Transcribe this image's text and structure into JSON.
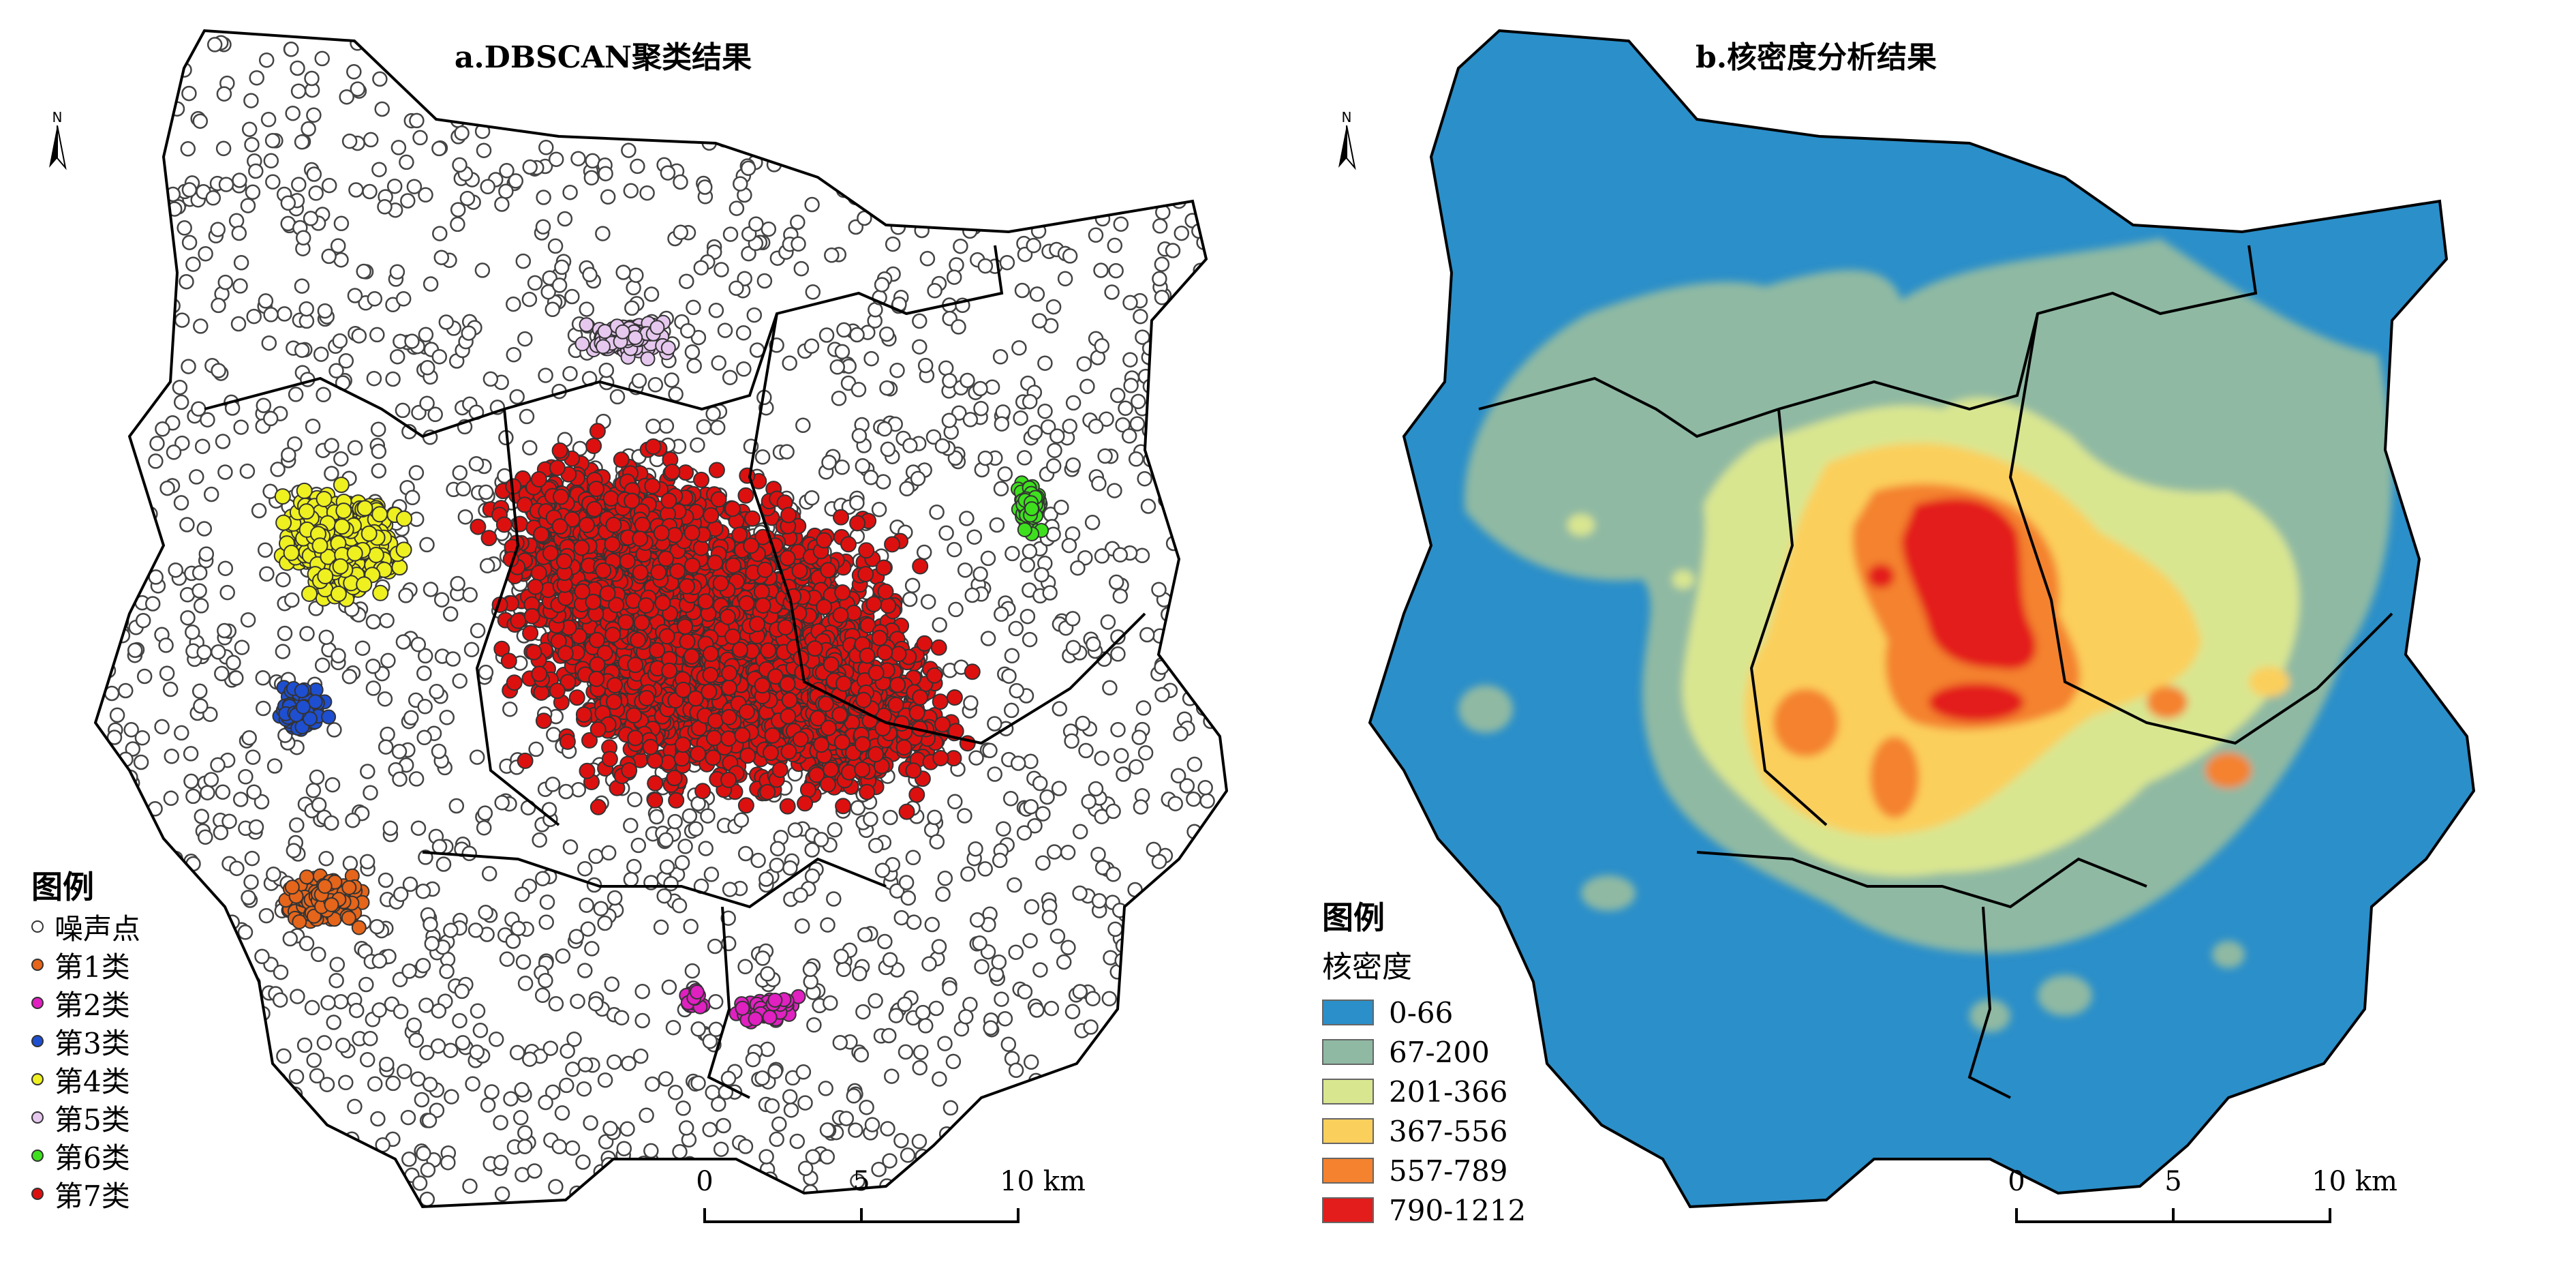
{
  "panel_a": {
    "title": "a.DBSCAN聚类结果",
    "north_letter": "N",
    "legend": {
      "title": "图例",
      "items": [
        {
          "label": "噪声点",
          "color": "#ffffff"
        },
        {
          "label": "第1类",
          "color": "#e5651a"
        },
        {
          "label": "第2类",
          "color": "#e020c0"
        },
        {
          "label": "第3类",
          "color": "#1e4fd0"
        },
        {
          "label": "第4类",
          "color": "#eef020"
        },
        {
          "label": "第5类",
          "color": "#e6c8ef"
        },
        {
          "label": "第6类",
          "color": "#3ee01e"
        },
        {
          "label": "第7类",
          "color": "#dd1010"
        }
      ]
    },
    "scale": {
      "labels": [
        "0",
        "5",
        "10 km"
      ]
    }
  },
  "panel_b": {
    "title": "b.核密度分析结果",
    "north_letter": "N",
    "legend": {
      "title": "图例",
      "subtitle": "核密度",
      "items": [
        {
          "label": "0-66",
          "color": "#2b8fc9"
        },
        {
          "label": "67-200",
          "color": "#8fb9a3"
        },
        {
          "label": "201-366",
          "color": "#d9e690"
        },
        {
          "label": "367-556",
          "color": "#fbcf5c"
        },
        {
          "label": "557-789",
          "color": "#f4822e"
        },
        {
          "label": "790-1212",
          "color": "#e31c1c"
        }
      ]
    },
    "scale": {
      "labels": [
        "0",
        "5",
        "10 km"
      ]
    }
  }
}
